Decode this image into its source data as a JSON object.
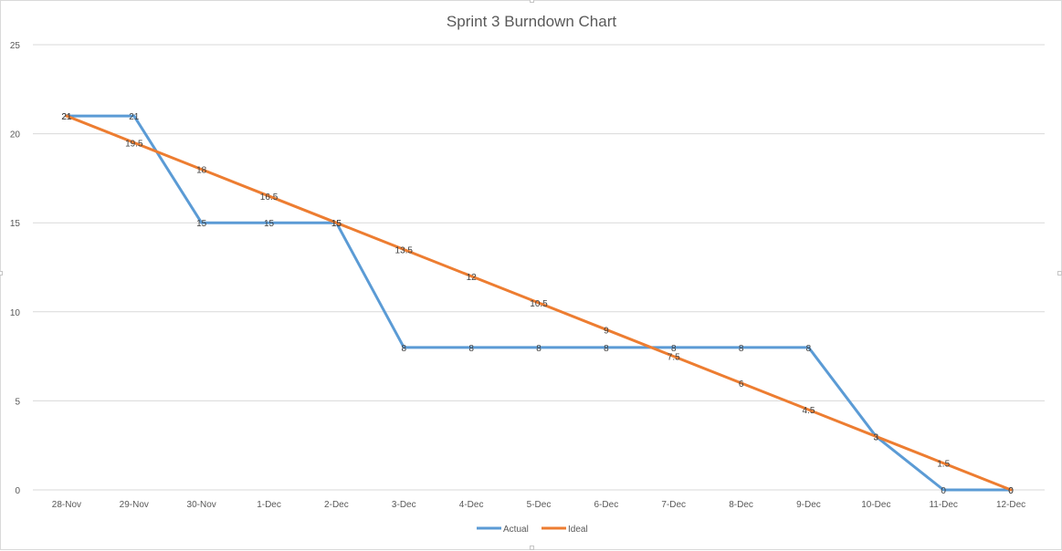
{
  "chart_data": {
    "type": "line",
    "title": "Sprint 3 Burndown Chart",
    "xlabel": "",
    "ylabel": "",
    "ylim": [
      0,
      25
    ],
    "yticks": [
      0,
      5,
      10,
      15,
      20,
      25
    ],
    "grid": true,
    "legend_position": "bottom",
    "categories": [
      "28-Nov",
      "29-Nov",
      "30-Nov",
      "1-Dec",
      "2-Dec",
      "3-Dec",
      "4-Dec",
      "5-Dec",
      "6-Dec",
      "7-Dec",
      "8-Dec",
      "9-Dec",
      "10-Dec",
      "11-Dec",
      "12-Dec"
    ],
    "series": [
      {
        "name": "Actual",
        "color": "#5b9bd5",
        "values": [
          21,
          21,
          15,
          15,
          15,
          8,
          8,
          8,
          8,
          8,
          8,
          8,
          3,
          0,
          0
        ]
      },
      {
        "name": "Ideal",
        "color": "#ed7d31",
        "values": [
          21,
          19.5,
          18,
          16.5,
          15,
          13.5,
          12,
          10.5,
          9,
          7.5,
          6,
          4.5,
          3,
          1.5,
          0
        ]
      }
    ]
  }
}
